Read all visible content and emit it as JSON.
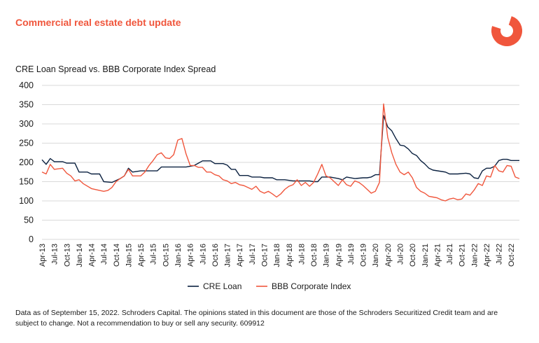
{
  "header": {
    "title": "Commercial real estate debt update"
  },
  "colors": {
    "accent": "#f0563c",
    "cre_line": "#0b2140",
    "bbb_line": "#f0563c"
  },
  "footnote": "Data as of September 15, 2022. Schroders Capital. The opinions stated in this document are those of the Schroders Securitized Credit team and are subject to change. Not a recommendation to buy or sell any security. 609912",
  "chart_data": {
    "type": "line",
    "title": "CRE Loan Spread vs. BBB Corporate Index Spread",
    "xlabel": "",
    "ylabel": "",
    "ylim": [
      0,
      400
    ],
    "yticks": [
      0,
      50,
      100,
      150,
      200,
      250,
      300,
      350,
      400
    ],
    "grid": true,
    "legend": "bottom",
    "x_start": "Apr-13",
    "x_end": "Dec-22",
    "x_tick_labels": [
      "Apr-13",
      "Jul-13",
      "Oct-13",
      "Jan-14",
      "Apr-14",
      "Jul-14",
      "Oct-14",
      "Jan-15",
      "Apr-15",
      "Jul-15",
      "Oct-15",
      "Jan-16",
      "Apr-16",
      "Jul-16",
      "Oct-16",
      "Jan-17",
      "Apr-17",
      "Jul-17",
      "Oct-17",
      "Jan-18",
      "Apr-18",
      "Jul-18",
      "Oct-18",
      "Jan-19",
      "Apr-19",
      "Jul-19",
      "Oct-19",
      "Jan-20",
      "Apr-20",
      "Jul-20",
      "Oct-20",
      "Jan-21",
      "Apr-21",
      "Jul-21",
      "Oct-21",
      "Jan-22",
      "Apr-22",
      "Jul-22",
      "Oct-22"
    ],
    "series": [
      {
        "name": "CRE Loan",
        "color": "#0b2140",
        "points": [
          [
            "Apr-13",
            207
          ],
          [
            "May-13",
            195
          ],
          [
            "Jun-13",
            210
          ],
          [
            "Jul-13",
            202
          ],
          [
            "Sep-13",
            202
          ],
          [
            "Oct-13",
            198
          ],
          [
            "Dec-13",
            198
          ],
          [
            "Jan-14",
            175
          ],
          [
            "Mar-14",
            175
          ],
          [
            "Apr-14",
            170
          ],
          [
            "Jun-14",
            170
          ],
          [
            "Jul-14",
            150
          ],
          [
            "Sep-14",
            148
          ],
          [
            "Nov-14",
            158
          ],
          [
            "Dec-14",
            165
          ],
          [
            "Jan-15",
            185
          ],
          [
            "Feb-15",
            175
          ],
          [
            "Apr-15",
            178
          ],
          [
            "Jun-15",
            178
          ],
          [
            "Aug-15",
            178
          ],
          [
            "Sep-15",
            188
          ],
          [
            "Dec-15",
            188
          ],
          [
            "Mar-16",
            188
          ],
          [
            "May-16",
            192
          ],
          [
            "Jun-16",
            198
          ],
          [
            "Jul-16",
            204
          ],
          [
            "Sep-16",
            204
          ],
          [
            "Oct-16",
            197
          ],
          [
            "Dec-16",
            197
          ],
          [
            "Jan-17",
            193
          ],
          [
            "Feb-17",
            182
          ],
          [
            "Mar-17",
            182
          ],
          [
            "Apr-17",
            166
          ],
          [
            "Jun-17",
            166
          ],
          [
            "Jul-17",
            162
          ],
          [
            "Sep-17",
            162
          ],
          [
            "Oct-17",
            160
          ],
          [
            "Dec-17",
            160
          ],
          [
            "Jan-18",
            155
          ],
          [
            "Mar-18",
            155
          ],
          [
            "May-18",
            152
          ],
          [
            "Jun-18",
            152
          ],
          [
            "Sep-18",
            152
          ],
          [
            "Oct-18",
            150
          ],
          [
            "Nov-18",
            150
          ],
          [
            "Dec-18",
            162
          ],
          [
            "Feb-19",
            162
          ],
          [
            "Apr-19",
            158
          ],
          [
            "May-19",
            155
          ],
          [
            "Jun-19",
            162
          ],
          [
            "Aug-19",
            158
          ],
          [
            "Oct-19",
            160
          ],
          [
            "Nov-19",
            160
          ],
          [
            "Dec-19",
            162
          ],
          [
            "Jan-20",
            168
          ],
          [
            "Feb-20",
            168
          ],
          [
            "Mar-20",
            322
          ],
          [
            "Apr-20",
            292
          ],
          [
            "May-20",
            282
          ],
          [
            "Jun-20",
            262
          ],
          [
            "Jul-20",
            245
          ],
          [
            "Aug-20",
            243
          ],
          [
            "Sep-20",
            235
          ],
          [
            "Oct-20",
            223
          ],
          [
            "Nov-20",
            218
          ],
          [
            "Dec-20",
            205
          ],
          [
            "Jan-21",
            196
          ],
          [
            "Feb-21",
            185
          ],
          [
            "Mar-21",
            180
          ],
          [
            "Jun-21",
            175
          ],
          [
            "Jul-21",
            170
          ],
          [
            "Sep-21",
            170
          ],
          [
            "Nov-21",
            172
          ],
          [
            "Dec-21",
            170
          ],
          [
            "Jan-22",
            160
          ],
          [
            "Feb-22",
            158
          ],
          [
            "Mar-22",
            178
          ],
          [
            "Apr-22",
            185
          ],
          [
            "May-22",
            185
          ],
          [
            "Jun-22",
            190
          ],
          [
            "Jul-22",
            205
          ],
          [
            "Aug-22",
            208
          ],
          [
            "Sep-22",
            208
          ],
          [
            "Oct-22",
            205
          ],
          [
            "Dec-22",
            205
          ]
        ]
      },
      {
        "name": "BBB Corporate Index",
        "color": "#f0563c",
        "points": [
          [
            "Apr-13",
            175
          ],
          [
            "May-13",
            170
          ],
          [
            "Jun-13",
            195
          ],
          [
            "Jul-13",
            182
          ],
          [
            "Sep-13",
            185
          ],
          [
            "Oct-13",
            172
          ],
          [
            "Nov-13",
            165
          ],
          [
            "Dec-13",
            152
          ],
          [
            "Jan-14",
            155
          ],
          [
            "Feb-14",
            145
          ],
          [
            "Apr-14",
            132
          ],
          [
            "Jun-14",
            127
          ],
          [
            "Jul-14",
            125
          ],
          [
            "Aug-14",
            127
          ],
          [
            "Sep-14",
            135
          ],
          [
            "Oct-14",
            150
          ],
          [
            "Nov-14",
            158
          ],
          [
            "Dec-14",
            165
          ],
          [
            "Jan-15",
            182
          ],
          [
            "Feb-15",
            165
          ],
          [
            "Apr-15",
            165
          ],
          [
            "May-15",
            175
          ],
          [
            "Jun-15",
            192
          ],
          [
            "Jul-15",
            205
          ],
          [
            "Aug-15",
            220
          ],
          [
            "Sep-15",
            225
          ],
          [
            "Oct-15",
            212
          ],
          [
            "Nov-15",
            210
          ],
          [
            "Dec-15",
            220
          ],
          [
            "Jan-16",
            258
          ],
          [
            "Feb-16",
            262
          ],
          [
            "Mar-16",
            222
          ],
          [
            "Apr-16",
            192
          ],
          [
            "May-16",
            192
          ],
          [
            "Jun-16",
            187
          ],
          [
            "Jul-16",
            187
          ],
          [
            "Aug-16",
            175
          ],
          [
            "Sep-16",
            175
          ],
          [
            "Oct-16",
            168
          ],
          [
            "Nov-16",
            165
          ],
          [
            "Dec-16",
            155
          ],
          [
            "Jan-17",
            152
          ],
          [
            "Feb-17",
            145
          ],
          [
            "Mar-17",
            148
          ],
          [
            "Apr-17",
            142
          ],
          [
            "May-17",
            140
          ],
          [
            "Jun-17",
            135
          ],
          [
            "Jul-17",
            130
          ],
          [
            "Aug-17",
            138
          ],
          [
            "Sep-17",
            125
          ],
          [
            "Oct-17",
            120
          ],
          [
            "Nov-17",
            125
          ],
          [
            "Dec-17",
            118
          ],
          [
            "Jan-18",
            110
          ],
          [
            "Feb-18",
            118
          ],
          [
            "Mar-18",
            130
          ],
          [
            "Apr-18",
            138
          ],
          [
            "May-18",
            142
          ],
          [
            "Jun-18",
            155
          ],
          [
            "Jul-18",
            140
          ],
          [
            "Aug-18",
            148
          ],
          [
            "Sep-18",
            138
          ],
          [
            "Oct-18",
            148
          ],
          [
            "Nov-18",
            170
          ],
          [
            "Dec-18",
            195
          ],
          [
            "Jan-19",
            165
          ],
          [
            "Feb-19",
            160
          ],
          [
            "Mar-19",
            150
          ],
          [
            "Apr-19",
            140
          ],
          [
            "May-19",
            155
          ],
          [
            "Jun-19",
            142
          ],
          [
            "Jul-19",
            138
          ],
          [
            "Aug-19",
            152
          ],
          [
            "Sep-19",
            148
          ],
          [
            "Oct-19",
            140
          ],
          [
            "Nov-19",
            130
          ],
          [
            "Dec-19",
            120
          ],
          [
            "Jan-20",
            125
          ],
          [
            "Feb-20",
            148
          ],
          [
            "Mar-20",
            352
          ],
          [
            "Apr-20",
            265
          ],
          [
            "May-20",
            225
          ],
          [
            "Jun-20",
            195
          ],
          [
            "Jul-20",
            175
          ],
          [
            "Aug-20",
            168
          ],
          [
            "Sep-20",
            175
          ],
          [
            "Oct-20",
            160
          ],
          [
            "Nov-20",
            135
          ],
          [
            "Dec-20",
            125
          ],
          [
            "Jan-21",
            120
          ],
          [
            "Feb-21",
            112
          ],
          [
            "Mar-21",
            110
          ],
          [
            "Apr-21",
            108
          ],
          [
            "May-21",
            103
          ],
          [
            "Jun-21",
            100
          ],
          [
            "Jul-21",
            105
          ],
          [
            "Aug-21",
            107
          ],
          [
            "Sep-21",
            103
          ],
          [
            "Oct-21",
            105
          ],
          [
            "Nov-21",
            118
          ],
          [
            "Dec-21",
            115
          ],
          [
            "Jan-22",
            128
          ],
          [
            "Feb-22",
            145
          ],
          [
            "Mar-22",
            140
          ],
          [
            "Apr-22",
            165
          ],
          [
            "May-22",
            162
          ],
          [
            "Jun-22",
            192
          ],
          [
            "Jul-22",
            178
          ],
          [
            "Aug-22",
            175
          ],
          [
            "Sep-22",
            192
          ],
          [
            "Oct-22",
            190
          ],
          [
            "Nov-22",
            162
          ],
          [
            "Dec-22",
            158
          ]
        ]
      }
    ]
  }
}
